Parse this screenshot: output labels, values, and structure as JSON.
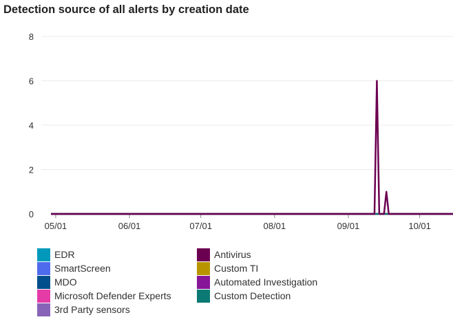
{
  "chart_data": {
    "type": "line",
    "title": "Detection source of all alerts by creation date",
    "xlabel": "",
    "ylabel": "",
    "ylim": [
      0,
      8
    ],
    "yticks": [
      0,
      2,
      4,
      6,
      8
    ],
    "xlim": [
      "2023-04-29",
      "2023-10-15"
    ],
    "xticks": [
      {
        "label": "05/01",
        "date": "2023-05-01"
      },
      {
        "label": "06/01",
        "date": "2023-06-01"
      },
      {
        "label": "07/01",
        "date": "2023-07-01"
      },
      {
        "label": "08/01",
        "date": "2023-08-01"
      },
      {
        "label": "09/01",
        "date": "2023-09-01"
      },
      {
        "label": "10/01",
        "date": "2023-10-01"
      }
    ],
    "grid": true,
    "legend_position": "bottom",
    "series": [
      {
        "name": "EDR",
        "color": "#0099bc",
        "points": [
          [
            "2023-04-29",
            0
          ],
          [
            "2023-10-15",
            0
          ]
        ]
      },
      {
        "name": "SmartScreen",
        "color": "#4f6bed",
        "points": [
          [
            "2023-04-29",
            0
          ],
          [
            "2023-10-15",
            0
          ]
        ]
      },
      {
        "name": "MDO",
        "color": "#004e8c",
        "points": [
          [
            "2023-04-29",
            0
          ],
          [
            "2023-10-15",
            0
          ]
        ]
      },
      {
        "name": "Microsoft Defender Experts",
        "color": "#e43ba6",
        "points": [
          [
            "2023-04-29",
            0
          ],
          [
            "2023-10-15",
            0
          ]
        ]
      },
      {
        "name": "3rd Party sensors",
        "color": "#8764b8",
        "points": [
          [
            "2023-04-29",
            0
          ],
          [
            "2023-10-15",
            0
          ]
        ]
      },
      {
        "name": "Antivirus",
        "color": "#6b0051",
        "points": [
          [
            "2023-04-29",
            0
          ],
          [
            "2023-09-12",
            0
          ],
          [
            "2023-09-13",
            6
          ],
          [
            "2023-09-14",
            0
          ],
          [
            "2023-09-16",
            0
          ],
          [
            "2023-09-17",
            1
          ],
          [
            "2023-09-18",
            0
          ],
          [
            "2023-10-15",
            0
          ]
        ]
      },
      {
        "name": "Custom TI",
        "color": "#b89500",
        "points": [
          [
            "2023-04-29",
            0
          ],
          [
            "2023-10-15",
            0
          ]
        ]
      },
      {
        "name": "Automated Investigation",
        "color": "#881798",
        "points": [
          [
            "2023-04-29",
            0
          ],
          [
            "2023-10-15",
            0
          ]
        ]
      },
      {
        "name": "Custom Detection",
        "color": "#0b7a75",
        "points": [
          [
            "2023-04-29",
            0
          ],
          [
            "2023-10-15",
            0
          ]
        ]
      }
    ]
  }
}
